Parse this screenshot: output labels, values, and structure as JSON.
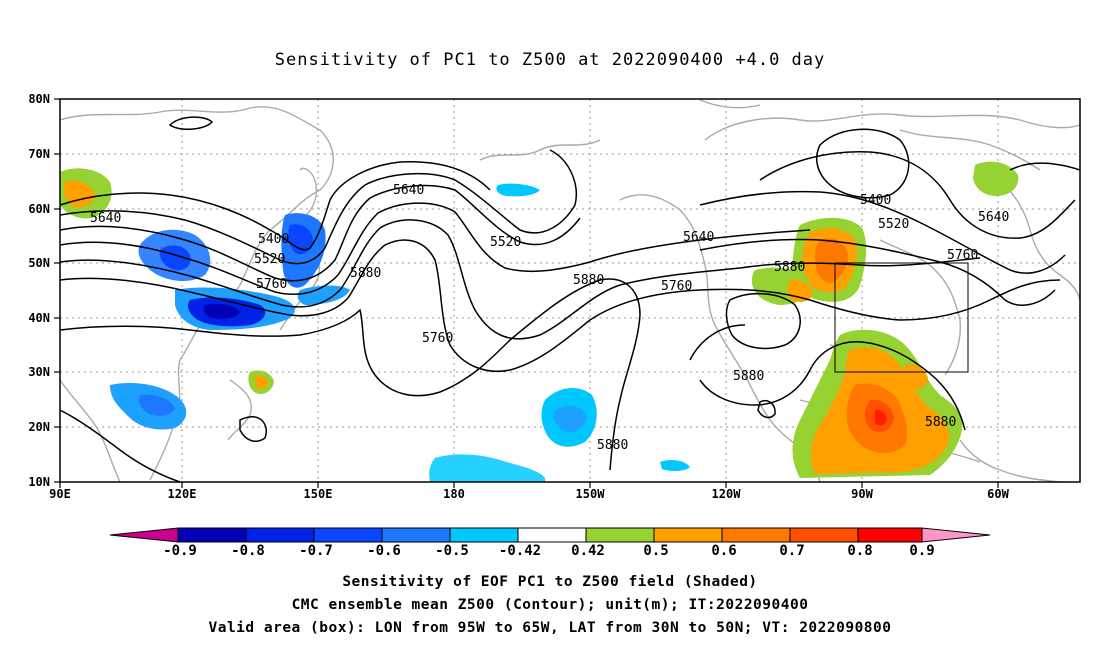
{
  "title": "Sensitivity of PC1 to Z500 at 2022090400 +4.0 day",
  "lat_labels": [
    "80N",
    "70N",
    "60N",
    "50N",
    "40N",
    "30N",
    "20N",
    "10N"
  ],
  "lon_labels": [
    "90E",
    "120E",
    "150E",
    "180",
    "150W",
    "120W",
    "90W",
    "60W"
  ],
  "contour_labels": {
    "c5640_left": "5640",
    "c5400_left": "5400",
    "c5520_left": "5520",
    "c5760_left": "5760",
    "c5880_left": "5880",
    "c5640_mid": "5640",
    "c5520_mid": "5520",
    "c5880_mid": "5880",
    "c5760_mid": "5760",
    "c5640_right": "5640",
    "c5760_right": "5760",
    "c5880_na": "5880",
    "c5400_right": "5400",
    "c5520_right": "5520",
    "c5640_far": "5640",
    "c5760_far": "5760",
    "c5880_mex": "5880",
    "c5880_carib": "5880",
    "c5880_pac": "5880"
  },
  "colorbar": {
    "ticks": [
      "-0.9",
      "-0.8",
      "-0.7",
      "-0.6",
      "-0.5",
      "-0.42",
      "0.42",
      "0.5",
      "0.6",
      "0.7",
      "0.8",
      "0.9"
    ],
    "colors": [
      "#c8008c",
      "#0000b4",
      "#0022e6",
      "#0a46ff",
      "#1e78ff",
      "#1ea0ff",
      "#00c8ff",
      "#ffffff",
      "#96d232",
      "#ffa000",
      "#ff7800",
      "#ff5000",
      "#ff1e00",
      "#ff0000",
      "#ff96c8"
    ]
  },
  "valid_box": {
    "lon_from": "95W",
    "lon_to": "65W",
    "lat_from": "30N",
    "lat_to": "50N"
  },
  "caption": {
    "line1": "Sensitivity of EOF PC1 to Z500 field (Shaded)",
    "line2": "CMC ensemble mean Z500 (Contour); unit(m); IT:2022090400",
    "line3": "Valid area (box): LON from 95W to 65W, LAT from 30N to 50N; VT: 2022090800"
  }
}
